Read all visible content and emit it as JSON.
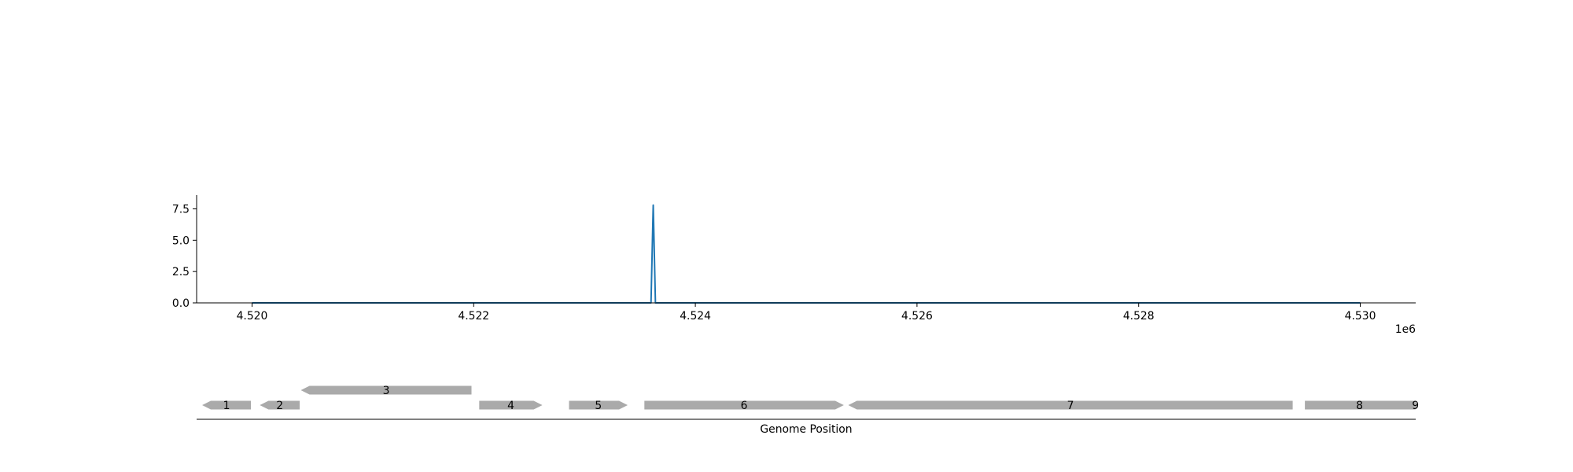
{
  "chart_data": [
    {
      "type": "line",
      "x": [
        4520000,
        4523600,
        4523620,
        4523640,
        4530000
      ],
      "series": [
        {
          "values": [
            0,
            0,
            7.8,
            0,
            0
          ],
          "color": "#1f77b4"
        }
      ],
      "xlim": [
        4519500,
        4530500
      ],
      "ylim": [
        0,
        8.6
      ],
      "xticks": [
        4520000,
        4522000,
        4524000,
        4526000,
        4528000,
        4530000
      ],
      "xtick_labels": [
        "4.520",
        "4.522",
        "4.524",
        "4.526",
        "4.528",
        "4.530"
      ],
      "yticks": [
        0,
        2.5,
        5.0,
        7.5
      ],
      "ytick_labels": [
        "0.0",
        "2.5",
        "5.0",
        "7.5"
      ],
      "x_offset_label": "1e6",
      "xlabel": "",
      "ylabel": "",
      "grid": false
    },
    {
      "type": "gene-track",
      "xlim": [
        4519500,
        4530500
      ],
      "xlabel": "Genome Position",
      "feature_color": "#aaaaaa",
      "features": [
        {
          "label": "1",
          "start": 4519550,
          "end": 4519990,
          "strand": -1,
          "row": 0
        },
        {
          "label": "2",
          "start": 4520070,
          "end": 4520430,
          "strand": -1,
          "row": 0
        },
        {
          "label": "3",
          "start": 4520440,
          "end": 4521980,
          "strand": -1,
          "row": 1
        },
        {
          "label": "4",
          "start": 4522050,
          "end": 4522620,
          "strand": 1,
          "row": 0
        },
        {
          "label": "5",
          "start": 4522860,
          "end": 4523390,
          "strand": 1,
          "row": 0
        },
        {
          "label": "6",
          "start": 4523540,
          "end": 4525340,
          "strand": 1,
          "row": 0
        },
        {
          "label": "7",
          "start": 4525380,
          "end": 4529390,
          "strand": -1,
          "row": 0
        },
        {
          "label": "8",
          "start": 4529500,
          "end": 4530490,
          "strand": 1,
          "row": 0
        },
        {
          "label": "9",
          "start": 4530510,
          "end": 4530750,
          "strand": -1,
          "row": 0
        }
      ]
    }
  ]
}
